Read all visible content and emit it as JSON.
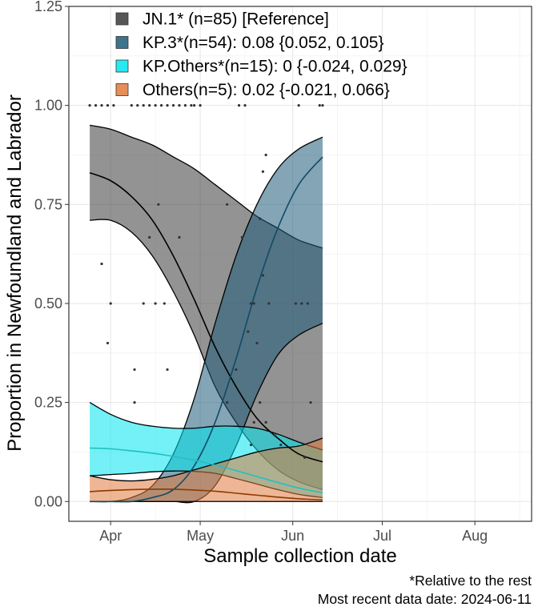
{
  "chart_data": {
    "type": "area",
    "xlabel": "Sample collection date",
    "ylabel": "Proportion in Newfoundland and Labrador",
    "x_range": [
      "2024-03-18",
      "2024-08-20"
    ],
    "y_range": [
      -0.05,
      1.25
    ],
    "x_ticks": [
      {
        "date": "2024-04-01",
        "label": "Apr"
      },
      {
        "date": "2024-05-01",
        "label": "May"
      },
      {
        "date": "2024-06-01",
        "label": "Jun"
      },
      {
        "date": "2024-07-01",
        "label": "Jul"
      },
      {
        "date": "2024-08-01",
        "label": "Aug"
      }
    ],
    "y_ticks": [
      {
        "value": 0,
        "label": "0.00"
      },
      {
        "value": 0.25,
        "label": "0.25"
      },
      {
        "value": 0.5,
        "label": "0.50"
      },
      {
        "value": 0.75,
        "label": "0.75"
      },
      {
        "value": 1,
        "label": "1.00"
      },
      {
        "value": 1.25,
        "label": "1.25"
      }
    ],
    "grid": true,
    "legend_position": "top-left",
    "series": [
      {
        "name": "JN.1*",
        "legend_label": "JN.1* (n=85)  [Reference]",
        "color": "#3a3a3a",
        "line_color": "#000000",
        "x": [
          "2024-03-25",
          "2024-04-01",
          "2024-04-08",
          "2024-04-15",
          "2024-04-22",
          "2024-04-29",
          "2024-05-06",
          "2024-05-13",
          "2024-05-20",
          "2024-05-27",
          "2024-06-03",
          "2024-06-11"
        ],
        "y": [
          0.83,
          0.81,
          0.77,
          0.71,
          0.62,
          0.51,
          0.39,
          0.29,
          0.21,
          0.16,
          0.12,
          0.1
        ],
        "lower": [
          0.71,
          0.71,
          0.68,
          0.62,
          0.53,
          0.42,
          0.29,
          0.2,
          0.13,
          0.08,
          0.05,
          0.03
        ],
        "upper": [
          0.95,
          0.94,
          0.92,
          0.9,
          0.87,
          0.84,
          0.8,
          0.76,
          0.72,
          0.69,
          0.66,
          0.64
        ]
      },
      {
        "name": "KP.3*",
        "legend_label": "KP.3*(n=54): 0.08 {0.052, 0.105}",
        "color": "#1d5b79",
        "line_color": "#124a66",
        "x": [
          "2024-03-25",
          "2024-04-01",
          "2024-04-08",
          "2024-04-15",
          "2024-04-22",
          "2024-04-29",
          "2024-05-06",
          "2024-05-13",
          "2024-05-20",
          "2024-05-27",
          "2024-06-03",
          "2024-06-11"
        ],
        "y": [
          0.0,
          0.0,
          0.0,
          0.01,
          0.03,
          0.09,
          0.2,
          0.36,
          0.54,
          0.69,
          0.8,
          0.87
        ],
        "lower": [
          0.0,
          0.0,
          0.0,
          0.0,
          0.0,
          0.0,
          0.04,
          0.14,
          0.27,
          0.37,
          0.42,
          0.45
        ],
        "upper": [
          0.0,
          0.0,
          0.01,
          0.04,
          0.12,
          0.26,
          0.45,
          0.62,
          0.75,
          0.84,
          0.89,
          0.92
        ]
      },
      {
        "name": "KP.Others*",
        "legend_label": "KP.Others*(n=15): 0 {-0.024, 0.029}",
        "color": "#00e5ee",
        "line_color": "#20c0c0",
        "x": [
          "2024-03-25",
          "2024-04-01",
          "2024-04-08",
          "2024-04-15",
          "2024-04-22",
          "2024-04-29",
          "2024-05-06",
          "2024-05-13",
          "2024-05-20",
          "2024-05-27",
          "2024-06-03",
          "2024-06-11"
        ],
        "y": [
          0.135,
          0.133,
          0.128,
          0.122,
          0.114,
          0.104,
          0.092,
          0.078,
          0.063,
          0.048,
          0.034,
          0.022
        ],
        "lower": [
          0.065,
          0.068,
          0.071,
          0.075,
          0.077,
          0.076,
          0.071,
          0.058,
          0.044,
          0.03,
          0.018,
          0.01
        ],
        "upper": [
          0.25,
          0.22,
          0.2,
          0.19,
          0.185,
          0.185,
          0.19,
          0.19,
          0.185,
          0.17,
          0.15,
          0.13
        ]
      },
      {
        "name": "Others",
        "legend_label": "Others(n=5): 0.02 {-0.021, 0.066}",
        "color": "#e07a3c",
        "line_color": "#8b3a00",
        "x": [
          "2024-03-25",
          "2024-04-01",
          "2024-04-08",
          "2024-04-15",
          "2024-04-22",
          "2024-04-29",
          "2024-05-06",
          "2024-05-13",
          "2024-05-20",
          "2024-05-27",
          "2024-06-03",
          "2024-06-11"
        ],
        "y": [
          0.025,
          0.028,
          0.03,
          0.031,
          0.031,
          0.029,
          0.026,
          0.021,
          0.016,
          0.011,
          0.007,
          0.004
        ],
        "lower": [
          0.0,
          0.0,
          0.0,
          0.0,
          0.0,
          0.0,
          0.0,
          0.0,
          0.0,
          0.0,
          0.0,
          0.0
        ],
        "upper": [
          0.065,
          0.055,
          0.052,
          0.056,
          0.065,
          0.08,
          0.095,
          0.11,
          0.125,
          0.135,
          0.14,
          0.16
        ]
      }
    ],
    "points": {
      "color": "#333333",
      "x": [
        "2024-03-25",
        "2024-03-27",
        "2024-03-29",
        "2024-03-31",
        "2024-04-02",
        "2024-04-08",
        "2024-04-10",
        "2024-04-12",
        "2024-04-14",
        "2024-04-16",
        "2024-04-18",
        "2024-04-20",
        "2024-04-22",
        "2024-04-24",
        "2024-04-26",
        "2024-04-28",
        "2024-04-29",
        "2024-05-01",
        "2024-05-14",
        "2024-05-16",
        "2024-06-03",
        "2024-06-10",
        "2024-06-11",
        "2024-04-01",
        "2024-04-16",
        "2024-04-09",
        "2024-04-17",
        "2024-04-24",
        "2024-03-29",
        "2024-04-14",
        "2024-04-19",
        "2024-03-31",
        "2024-04-09",
        "2024-04-12",
        "2024-04-20",
        "2024-05-10",
        "2024-05-15",
        "2024-05-19",
        "2024-05-24",
        "2024-05-22",
        "2024-05-18",
        "2024-05-17",
        "2024-05-20",
        "2024-05-21",
        "2024-05-13",
        "2024-05-10",
        "2024-05-23",
        "2024-05-22",
        "2024-05-21",
        "2024-05-19",
        "2024-05-23",
        "2024-05-18",
        "2024-05-26",
        "2024-05-28",
        "2024-06-02",
        "2024-06-04",
        "2024-06-06",
        "2024-06-07",
        "2024-06-05"
      ],
      "y": [
        1.0,
        1.0,
        1.0,
        1.0,
        1.0,
        1.0,
        1.0,
        1.0,
        1.0,
        1.0,
        1.0,
        1.0,
        1.0,
        1.0,
        1.0,
        1.0,
        1.0,
        1.0,
        1.0,
        1.0,
        1.0,
        1.0,
        1.0,
        0.5,
        0.5,
        0.333,
        0.75,
        0.667,
        0.6,
        0.667,
        0.5,
        0.4,
        0.25,
        0.5,
        0.333,
        0.75,
        0.667,
        0.5,
        0.5,
        0.571,
        0.5,
        0.429,
        0.4,
        0.25,
        0.333,
        0.25,
        0.875,
        0.833,
        0.714,
        0.2,
        0.2,
        0.143,
        0.167,
        0.143,
        0.5,
        0.5,
        0.5,
        0.25,
        0.111
      ]
    }
  },
  "caption": {
    "line1": "*Relative to the rest",
    "line2": "Most recent data date: 2024-06-11"
  }
}
